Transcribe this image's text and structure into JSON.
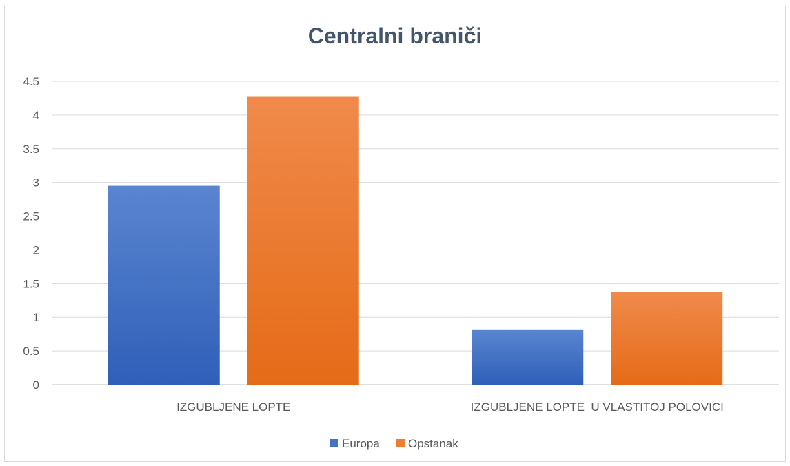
{
  "chart_data": {
    "type": "bar",
    "title": "Centralni braniči",
    "categories": [
      "IZGUBLJENE LOPTE",
      "IZGUBLJENE LOPTE  U VLASTITOJ POLOVICI"
    ],
    "series": [
      {
        "name": "Europa",
        "values": [
          2.95,
          0.82
        ],
        "color": "#4472c4"
      },
      {
        "name": "Opstanak",
        "values": [
          4.28,
          1.38
        ],
        "color": "#ed7d31"
      }
    ],
    "yticks": [
      "0",
      "0.5",
      "1",
      "1.5",
      "2",
      "2.5",
      "3",
      "3.5",
      "4",
      "4.5"
    ],
    "ylim": [
      0,
      4.5
    ],
    "grid": true,
    "legend_position": "bottom"
  }
}
